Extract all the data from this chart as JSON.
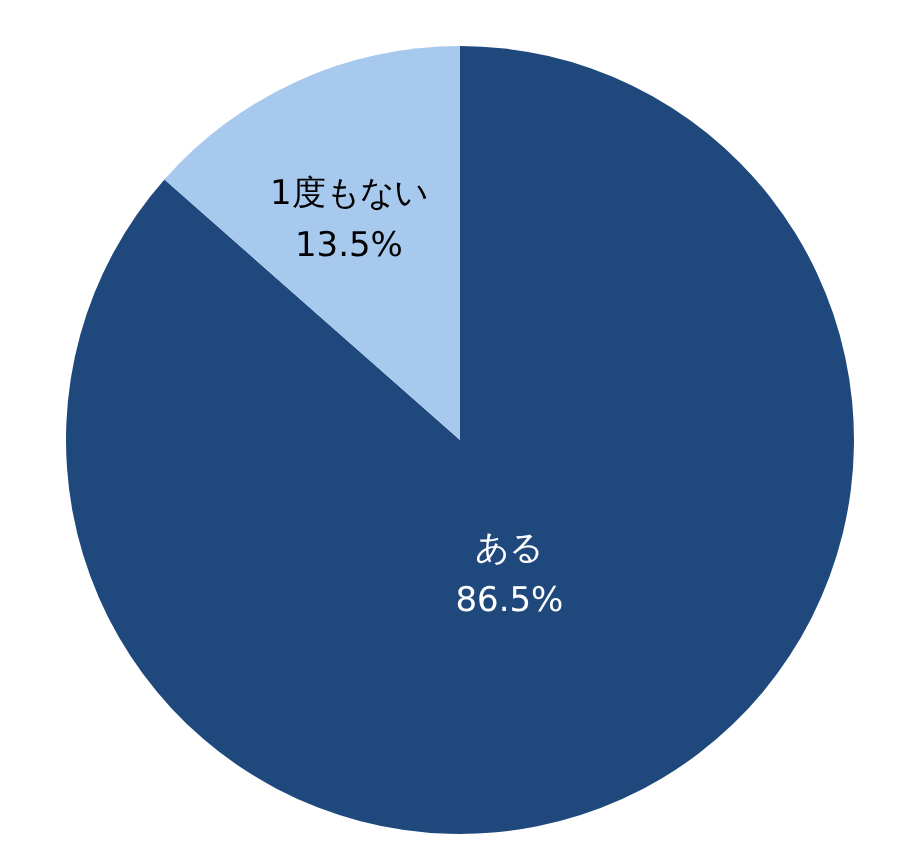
{
  "chart_data": {
    "type": "pie",
    "categories": [
      "ある",
      "1度もない"
    ],
    "values": [
      86.5,
      13.5
    ],
    "colors": [
      "#1f497d",
      "#a8c9ee"
    ],
    "value_labels": [
      "86.5%",
      "13.5%"
    ],
    "legend": false
  }
}
